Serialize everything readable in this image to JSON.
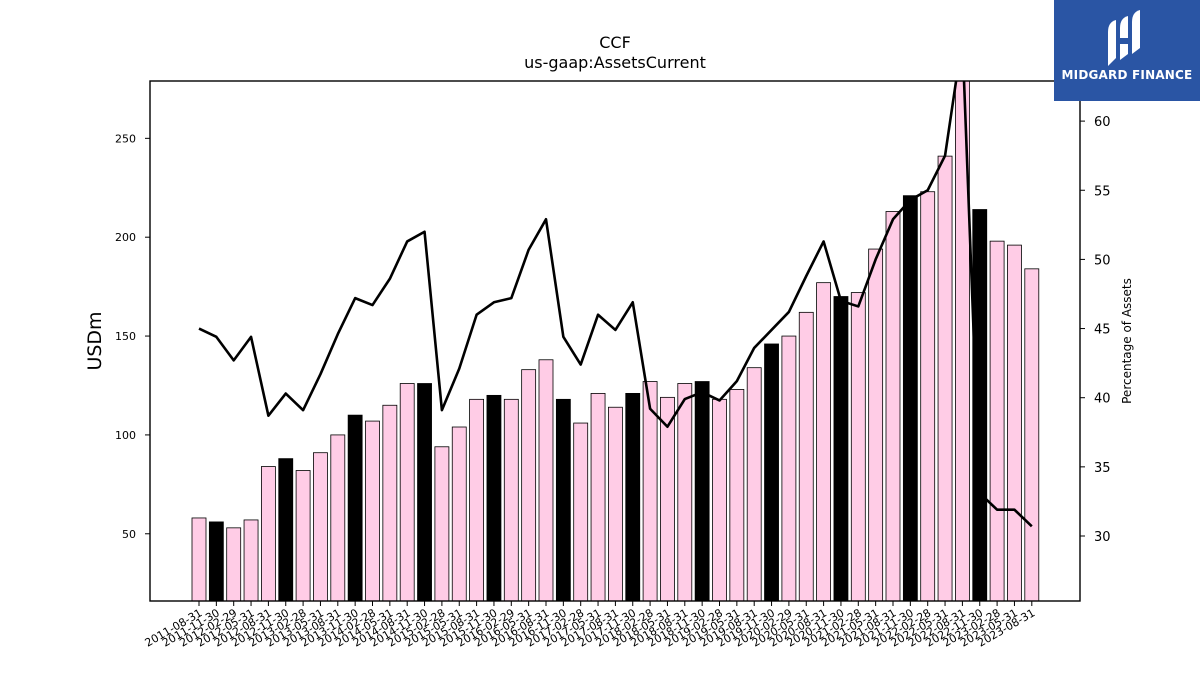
{
  "brand": {
    "name": "MIDGARD FINANCE",
    "bg_color": "#2a55a4"
  },
  "chart_data": {
    "type": "bar+line",
    "title": "CCF",
    "subtitle": "us-gaap:AssetsCurrent",
    "ylabel": "USDm",
    "y2label": "Percentage of Assets",
    "ylim": [
      16,
      279
    ],
    "y2lim": [
      25.3,
      62.9
    ],
    "yticks": [
      50,
      100,
      150,
      200,
      250
    ],
    "y2ticks": [
      30,
      35,
      40,
      45,
      50,
      55,
      60
    ],
    "bar_fill_default": "#ffcce6",
    "bar_fill_highlight": "#000000",
    "line_color": "#000000",
    "categories": [
      "2011-08-31",
      "2011-11-30",
      "2012-02-29",
      "2012-05-31",
      "2012-08-31",
      "2012-11-30",
      "2013-02-28",
      "2013-05-31",
      "2013-08-31",
      "2013-11-30",
      "2014-02-28",
      "2014-05-31",
      "2014-08-31",
      "2014-11-30",
      "2015-02-28",
      "2015-05-31",
      "2015-08-31",
      "2015-11-30",
      "2016-02-29",
      "2016-05-31",
      "2016-08-31",
      "2016-11-30",
      "2017-02-28",
      "2017-05-31",
      "2017-08-31",
      "2017-11-30",
      "2018-02-28",
      "2018-05-31",
      "2018-08-31",
      "2018-11-30",
      "2019-02-28",
      "2019-05-31",
      "2019-08-31",
      "2019-11-30",
      "2020-02-29",
      "2020-05-31",
      "2020-08-31",
      "2020-11-30",
      "2021-02-28",
      "2021-05-31",
      "2021-08-31",
      "2021-11-30",
      "2022-02-28",
      "2022-05-31",
      "2022-08-31",
      "2022-11-30",
      "2023-02-28",
      "2023-05-31",
      "2023-08-31"
    ],
    "series": [
      {
        "kind": "bar",
        "values": [
          58,
          56,
          53,
          57,
          84,
          88,
          82,
          91,
          100,
          110,
          107,
          115,
          126,
          126,
          94,
          104,
          118,
          120,
          118,
          133,
          138,
          118,
          106,
          121,
          114,
          121,
          127,
          119,
          126,
          127,
          118,
          123,
          134,
          146,
          150,
          162,
          177,
          170,
          172,
          194,
          213,
          221,
          223,
          241,
          282,
          214,
          198,
          196,
          184
        ],
        "highlight": [
          false,
          true,
          false,
          false,
          false,
          true,
          false,
          false,
          false,
          true,
          false,
          false,
          false,
          true,
          false,
          false,
          false,
          true,
          false,
          false,
          false,
          true,
          false,
          false,
          false,
          true,
          false,
          false,
          false,
          true,
          false,
          false,
          false,
          true,
          false,
          false,
          false,
          true,
          false,
          false,
          false,
          true,
          false,
          false,
          false,
          true,
          false,
          false,
          false
        ]
      },
      {
        "kind": "line",
        "axis": "y2",
        "values": [
          45.0,
          44.4,
          42.7,
          44.4,
          38.7,
          40.3,
          39.1,
          41.7,
          44.6,
          47.2,
          46.7,
          48.6,
          51.3,
          52.0,
          39.1,
          42.1,
          46.0,
          46.9,
          47.2,
          50.7,
          52.9,
          44.4,
          42.4,
          46.0,
          44.9,
          46.9,
          39.2,
          37.9,
          39.9,
          40.4,
          39.8,
          41.2,
          43.6,
          44.9,
          46.2,
          48.8,
          51.3,
          47.0,
          46.6,
          50.0,
          52.9,
          54.3,
          55.0,
          57.5,
          66.0,
          33.1,
          31.9,
          31.9,
          30.7
        ]
      }
    ],
    "grid": false,
    "legend": "none"
  }
}
